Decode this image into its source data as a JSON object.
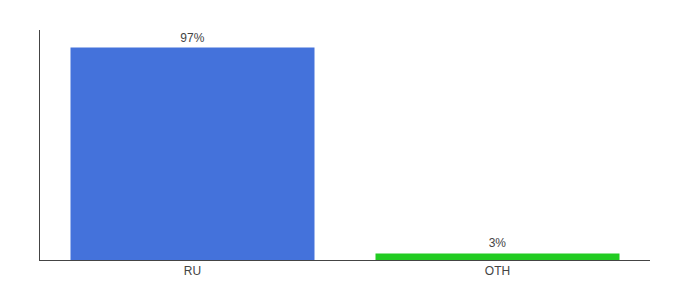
{
  "chart_data": {
    "type": "bar",
    "categories": [
      "RU",
      "OTH"
    ],
    "values": [
      97,
      3
    ],
    "value_labels": [
      "97%",
      "3%"
    ],
    "colors": [
      "#4472db",
      "#22cc22"
    ],
    "ylim": [
      0,
      105
    ],
    "yticks": [],
    "tick_labels": "x",
    "data_labels": true,
    "grid": false
  }
}
